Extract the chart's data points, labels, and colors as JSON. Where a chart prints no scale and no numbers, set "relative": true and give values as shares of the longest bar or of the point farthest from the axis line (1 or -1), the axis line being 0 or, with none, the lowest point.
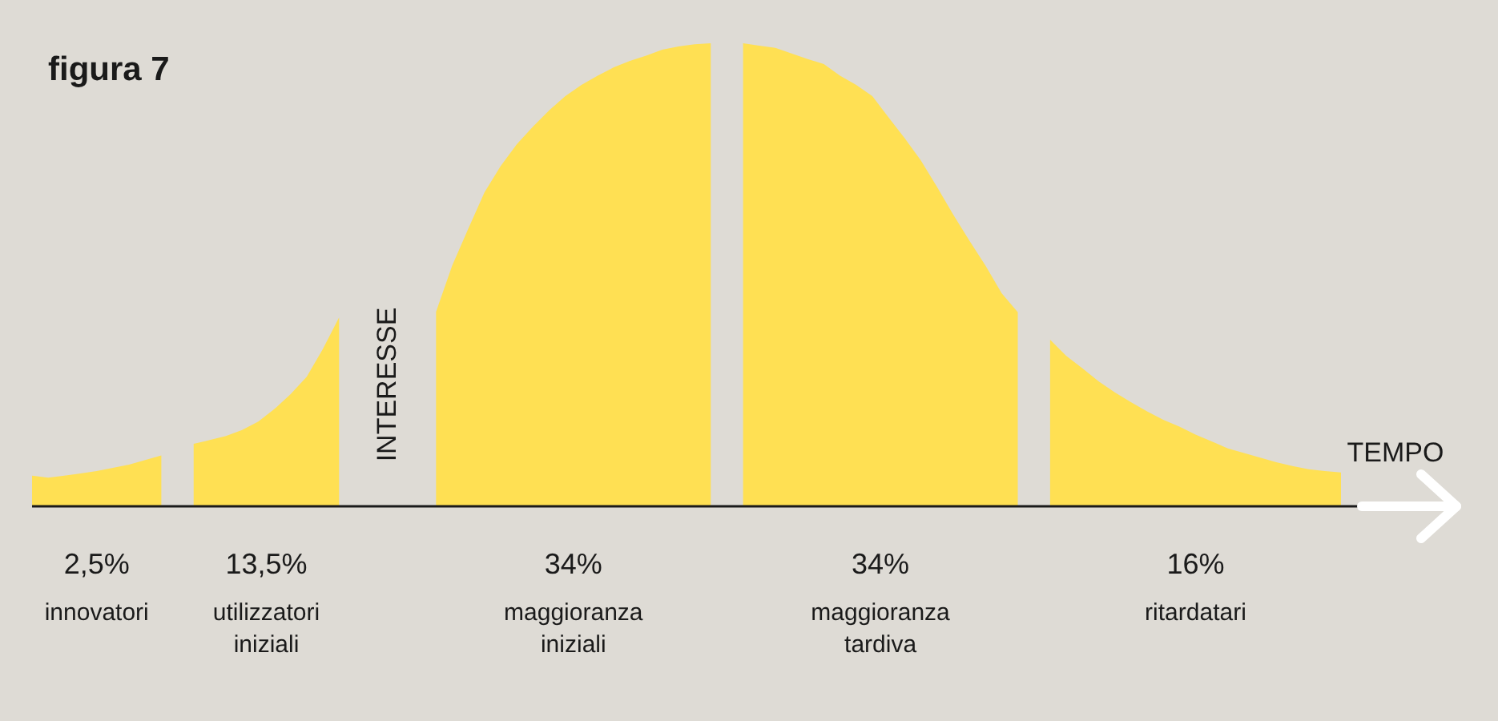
{
  "chart_data": {
    "type": "area",
    "relative": true,
    "title": "figura 7",
    "xlabel": "TEMPO",
    "categories": [
      null,
      null,
      null,
      null,
      null,
      null,
      null,
      null,
      null,
      null,
      null,
      null,
      null,
      null,
      null,
      null,
      null,
      null,
      null,
      null,
      null,
      null,
      null,
      null,
      null,
      null,
      null,
      null,
      null,
      null,
      null,
      null,
      null,
      null,
      null,
      null,
      null,
      null,
      null,
      null,
      null,
      null,
      null,
      null,
      null,
      null,
      null,
      null,
      null,
      null,
      null,
      null,
      null,
      null,
      null,
      null,
      null,
      null,
      null,
      null,
      null,
      null,
      null,
      null,
      null,
      null,
      null,
      null,
      null,
      null,
      null,
      null,
      null,
      null,
      null,
      null,
      null,
      null,
      null,
      null,
      null,
      null
    ],
    "series": [
      {
        "color": "#ffe053",
        "values": [
          0.066,
          0.062,
          0.066,
          0.071,
          0.076,
          0.083,
          0.09,
          0.1,
          0.11,
          null,
          null,
          null,
          null,
          null,
          null,
          null,
          null,
          null,
          null,
          null,
          null,
          null,
          null,
          null,
          null,
          null,
          null,
          null,
          null,
          null,
          null,
          null,
          null,
          null,
          null,
          null,
          null,
          null,
          null,
          null,
          null,
          null,
          null,
          null,
          null,
          null,
          null,
          null,
          null,
          null,
          null,
          null,
          null,
          null,
          null,
          null,
          null,
          null,
          null,
          null,
          null,
          null,
          null,
          null,
          null,
          null,
          null,
          null,
          null,
          null,
          null,
          null,
          null,
          null,
          null,
          null,
          null,
          null,
          null,
          null,
          null,
          null
        ]
      },
      {
        "color": "#ffe053",
        "values": [
          null,
          null,
          null,
          null,
          null,
          null,
          null,
          null,
          null,
          null,
          0.135,
          0.143,
          0.152,
          0.165,
          0.183,
          0.21,
          0.242,
          0.28,
          0.34,
          0.408,
          null,
          null,
          null,
          null,
          null,
          null,
          null,
          null,
          null,
          null,
          null,
          null,
          null,
          null,
          null,
          null,
          null,
          null,
          null,
          null,
          null,
          null,
          null,
          null,
          null,
          null,
          null,
          null,
          null,
          null,
          null,
          null,
          null,
          null,
          null,
          null,
          null,
          null,
          null,
          null,
          null,
          null,
          null,
          null,
          null,
          null,
          null,
          null,
          null,
          null,
          null,
          null,
          null,
          null,
          null,
          null,
          null,
          null,
          null,
          null,
          null,
          null
        ]
      },
      {
        "color": "#ffe053",
        "values": [
          null,
          null,
          null,
          null,
          null,
          null,
          null,
          null,
          null,
          null,
          null,
          null,
          null,
          null,
          null,
          null,
          null,
          null,
          null,
          null,
          null,
          null,
          null,
          null,
          null,
          0.42,
          0.52,
          0.6,
          0.678,
          0.735,
          0.782,
          0.82,
          0.855,
          0.886,
          0.91,
          0.93,
          0.948,
          0.962,
          0.973,
          0.986,
          0.993,
          0.998,
          1.0,
          null,
          null,
          null,
          null,
          null,
          null,
          null,
          null,
          null,
          null,
          null,
          null,
          null,
          null,
          null,
          null,
          null,
          null,
          null,
          null,
          null,
          null,
          null,
          null,
          null,
          null,
          null,
          null,
          null,
          null,
          null,
          null,
          null,
          null,
          null,
          null,
          null,
          null,
          null
        ]
      },
      {
        "color": "#ffe053",
        "values": [
          null,
          null,
          null,
          null,
          null,
          null,
          null,
          null,
          null,
          null,
          null,
          null,
          null,
          null,
          null,
          null,
          null,
          null,
          null,
          null,
          null,
          null,
          null,
          null,
          null,
          null,
          null,
          null,
          null,
          null,
          null,
          null,
          null,
          null,
          null,
          null,
          null,
          null,
          null,
          null,
          null,
          null,
          null,
          null,
          1.0,
          0.995,
          0.99,
          0.978,
          0.966,
          0.955,
          0.93,
          0.91,
          0.886,
          0.84,
          0.795,
          0.747,
          0.69,
          0.63,
          0.574,
          0.52,
          0.46,
          0.419,
          null,
          null,
          null,
          null,
          null,
          null,
          null,
          null,
          null,
          null,
          null,
          null,
          null,
          null,
          null,
          null,
          null,
          null,
          null,
          null
        ]
      },
      {
        "color": "#ffe053",
        "values": [
          null,
          null,
          null,
          null,
          null,
          null,
          null,
          null,
          null,
          null,
          null,
          null,
          null,
          null,
          null,
          null,
          null,
          null,
          null,
          null,
          null,
          null,
          null,
          null,
          null,
          null,
          null,
          null,
          null,
          null,
          null,
          null,
          null,
          null,
          null,
          null,
          null,
          null,
          null,
          null,
          null,
          null,
          null,
          null,
          null,
          null,
          null,
          null,
          null,
          null,
          null,
          null,
          null,
          null,
          null,
          null,
          null,
          null,
          null,
          null,
          null,
          null,
          null,
          0.36,
          0.325,
          0.298,
          0.27,
          0.246,
          0.225,
          0.205,
          0.187,
          0.172,
          0.155,
          0.14,
          0.125,
          0.115,
          0.105,
          0.095,
          0.087,
          0.08,
          0.076,
          0.073
        ]
      }
    ],
    "annotations": [
      "2,5%",
      "13,5%",
      "34%",
      "34%",
      "16%",
      "innovatori",
      "utilizzatori iniziali",
      "maggioranza iniziali",
      "maggioranza tardiva",
      "ritardatari",
      "INTERESSE"
    ]
  }
}
